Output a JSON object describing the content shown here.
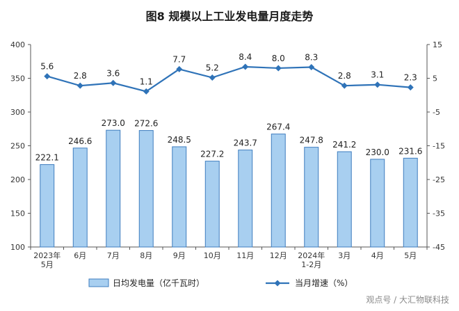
{
  "chart_data": {
    "type": "bar+line",
    "title": "图8  规模以上工业发电量月度走势",
    "categories": [
      "2023年\n5月",
      "6月",
      "7月",
      "8月",
      "9月",
      "10月",
      "11月",
      "12月",
      "2024年\n1-2月",
      "3月",
      "4月",
      "5月"
    ],
    "series": [
      {
        "name": "日均发电量（亿千瓦时）",
        "type": "bar",
        "axis": "left",
        "values": [
          222.1,
          246.6,
          273.0,
          272.6,
          248.5,
          227.2,
          243.7,
          267.4,
          247.8,
          241.2,
          230.0,
          231.6
        ],
        "labels": [
          "222.1",
          "246.6",
          "273.0",
          "272.6",
          "248.5",
          "227.2",
          "243.7",
          "267.4",
          "247.8",
          "241.2",
          "230.0",
          "231.6"
        ]
      },
      {
        "name": "当月增速（%）",
        "type": "line",
        "axis": "right",
        "values": [
          5.6,
          2.8,
          3.6,
          1.1,
          7.7,
          5.2,
          8.4,
          8.0,
          8.3,
          2.8,
          3.1,
          2.3
        ],
        "labels": [
          "5.6",
          "2.8",
          "3.6",
          "1.1",
          "7.7",
          "5.2",
          "8.4",
          "8.0",
          "8.3",
          "2.8",
          "3.1",
          "2.3"
        ]
      }
    ],
    "left_axis": {
      "ylim": [
        100,
        400
      ],
      "ticks": [
        "100",
        "150",
        "200",
        "250",
        "300",
        "350",
        "400"
      ]
    },
    "right_axis": {
      "ylim": [
        -45,
        15
      ],
      "ticks": [
        "-45",
        "-35",
        "-25",
        "-15",
        "-5",
        "5",
        "15"
      ]
    },
    "legend": [
      "日均发电量（亿千瓦时）",
      "当月增速（%）"
    ],
    "legend_position": "bottom",
    "colors": {
      "bar_fill": "#a8cff0",
      "bar_stroke": "#3e7dbf",
      "line": "#2f73b8",
      "axis": "#555555",
      "label": "#222222"
    }
  },
  "watermark": "观点号 / 大汇物联科技"
}
